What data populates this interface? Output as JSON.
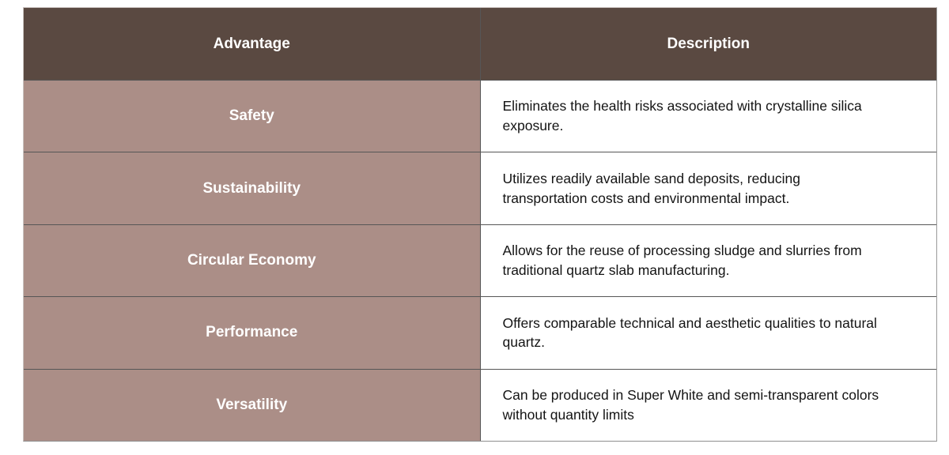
{
  "table": {
    "columns": [
      {
        "label": "Advantage"
      },
      {
        "label": "Description"
      }
    ],
    "rows": [
      {
        "advantage": "Safety",
        "description": "Eliminates the health risks associated with crystalline silica exposure."
      },
      {
        "advantage": "Sustainability",
        "description": "Utilizes readily available sand deposits, reducing transportation costs and environmental impact."
      },
      {
        "advantage": "Circular Economy",
        "description": "Allows for the reuse of processing sludge and slurries from traditional quartz slab manufacturing."
      },
      {
        "advantage": "Performance",
        "description": "Offers comparable technical and aesthetic qualities to natural quartz."
      },
      {
        "advantage": "Versatility",
        "description": "Can be produced in Super White and semi-transparent colors without quantity limits"
      }
    ],
    "colors": {
      "header_bg": "#5a4941",
      "header_text": "#ffffff",
      "advantage_bg": "#ab8e87",
      "advantage_text": "#ffffff",
      "description_bg": "#ffffff",
      "description_text": "#141414",
      "border": "#565656"
    }
  }
}
